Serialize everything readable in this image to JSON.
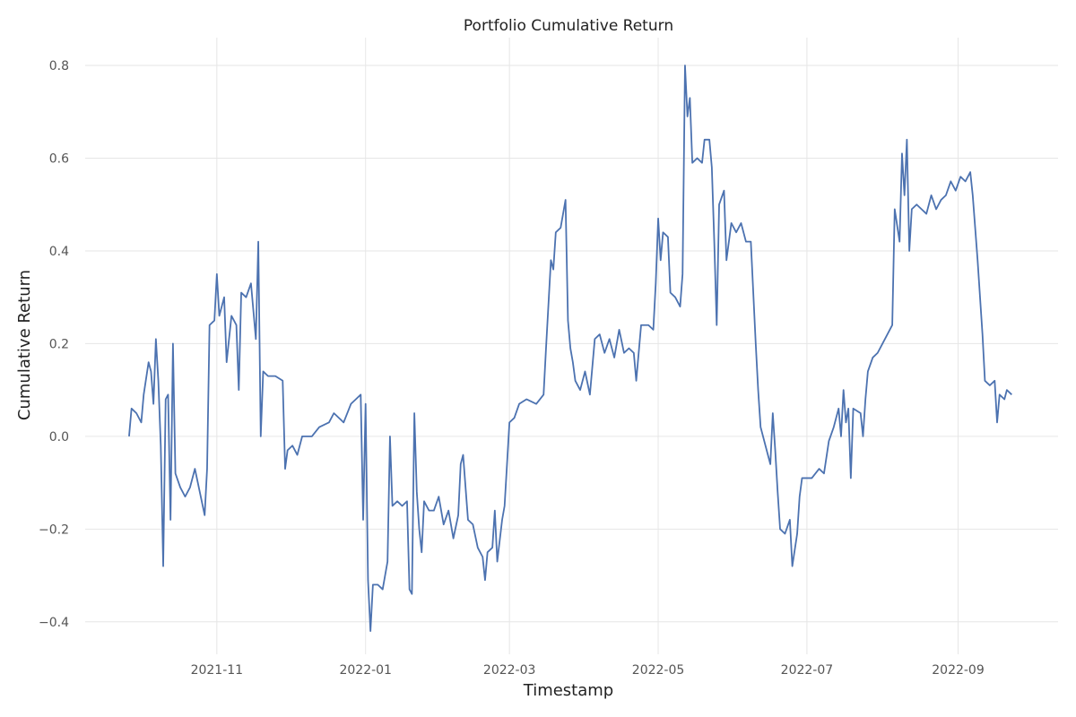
{
  "chart_data": {
    "type": "line",
    "title": "Portfolio Cumulative Return",
    "xlabel": "Timestamp",
    "ylabel": "Cumulative Return",
    "grid": true,
    "legend": "none",
    "xlim": [
      "2021-09-08",
      "2022-10-12"
    ],
    "ylim": [
      -0.47,
      0.86
    ],
    "x_ticks": [
      "2021-11-01",
      "2022-01-01",
      "2022-03-01",
      "2022-05-01",
      "2022-07-01",
      "2022-09-01"
    ],
    "x_tick_labels": [
      "2021-11",
      "2022-01",
      "2022-03",
      "2022-05",
      "2022-07",
      "2022-09"
    ],
    "y_ticks": [
      -0.4,
      -0.2,
      0.0,
      0.2,
      0.4,
      0.6,
      0.8
    ],
    "y_tick_labels": [
      "−0.4",
      "−0.2",
      "0.0",
      "0.2",
      "0.4",
      "0.6",
      "0.8"
    ],
    "series": [
      {
        "color": "#4c72b0",
        "points": [
          [
            "2021-09-26",
            0.0
          ],
          [
            "2021-09-27",
            0.06
          ],
          [
            "2021-09-29",
            0.05
          ],
          [
            "2021-10-01",
            0.03
          ],
          [
            "2021-10-02",
            0.09
          ],
          [
            "2021-10-04",
            0.16
          ],
          [
            "2021-10-05",
            0.14
          ],
          [
            "2021-10-06",
            0.07
          ],
          [
            "2021-10-07",
            0.21
          ],
          [
            "2021-10-08",
            0.12
          ],
          [
            "2021-10-09",
            -0.02
          ],
          [
            "2021-10-10",
            -0.28
          ],
          [
            "2021-10-11",
            0.08
          ],
          [
            "2021-10-12",
            0.09
          ],
          [
            "2021-10-13",
            -0.18
          ],
          [
            "2021-10-14",
            0.2
          ],
          [
            "2021-10-15",
            -0.08
          ],
          [
            "2021-10-17",
            -0.11
          ],
          [
            "2021-10-19",
            -0.13
          ],
          [
            "2021-10-21",
            -0.11
          ],
          [
            "2021-10-23",
            -0.07
          ],
          [
            "2021-10-25",
            -0.12
          ],
          [
            "2021-10-27",
            -0.17
          ],
          [
            "2021-10-28",
            -0.07
          ],
          [
            "2021-10-29",
            0.24
          ],
          [
            "2021-10-31",
            0.25
          ],
          [
            "2021-11-01",
            0.35
          ],
          [
            "2021-11-02",
            0.26
          ],
          [
            "2021-11-04",
            0.3
          ],
          [
            "2021-11-05",
            0.16
          ],
          [
            "2021-11-07",
            0.26
          ],
          [
            "2021-11-09",
            0.24
          ],
          [
            "2021-11-10",
            0.1
          ],
          [
            "2021-11-11",
            0.31
          ],
          [
            "2021-11-13",
            0.3
          ],
          [
            "2021-11-15",
            0.33
          ],
          [
            "2021-11-17",
            0.21
          ],
          [
            "2021-11-18",
            0.42
          ],
          [
            "2021-11-19",
            0.0
          ],
          [
            "2021-11-20",
            0.14
          ],
          [
            "2021-11-22",
            0.13
          ],
          [
            "2021-11-25",
            0.13
          ],
          [
            "2021-11-28",
            0.12
          ],
          [
            "2021-11-29",
            -0.07
          ],
          [
            "2021-11-30",
            -0.03
          ],
          [
            "2021-12-02",
            -0.02
          ],
          [
            "2021-12-04",
            -0.04
          ],
          [
            "2021-12-06",
            0.0
          ],
          [
            "2021-12-10",
            0.0
          ],
          [
            "2021-12-13",
            0.02
          ],
          [
            "2021-12-17",
            0.03
          ],
          [
            "2021-12-19",
            0.05
          ],
          [
            "2021-12-23",
            0.03
          ],
          [
            "2021-12-26",
            0.07
          ],
          [
            "2021-12-28",
            0.08
          ],
          [
            "2021-12-30",
            0.09
          ],
          [
            "2021-12-31",
            -0.18
          ],
          [
            "2022-01-01",
            0.07
          ],
          [
            "2022-01-02",
            -0.31
          ],
          [
            "2022-01-03",
            -0.42
          ],
          [
            "2022-01-04",
            -0.32
          ],
          [
            "2022-01-06",
            -0.32
          ],
          [
            "2022-01-08",
            -0.33
          ],
          [
            "2022-01-10",
            -0.27
          ],
          [
            "2022-01-11",
            0.0
          ],
          [
            "2022-01-12",
            -0.15
          ],
          [
            "2022-01-14",
            -0.14
          ],
          [
            "2022-01-16",
            -0.15
          ],
          [
            "2022-01-18",
            -0.14
          ],
          [
            "2022-01-19",
            -0.33
          ],
          [
            "2022-01-20",
            -0.34
          ],
          [
            "2022-01-21",
            0.05
          ],
          [
            "2022-01-22",
            -0.12
          ],
          [
            "2022-01-23",
            -0.2
          ],
          [
            "2022-01-24",
            -0.25
          ],
          [
            "2022-01-25",
            -0.14
          ],
          [
            "2022-01-27",
            -0.16
          ],
          [
            "2022-01-29",
            -0.16
          ],
          [
            "2022-01-31",
            -0.13
          ],
          [
            "2022-02-02",
            -0.19
          ],
          [
            "2022-02-04",
            -0.16
          ],
          [
            "2022-02-06",
            -0.22
          ],
          [
            "2022-02-08",
            -0.17
          ],
          [
            "2022-02-09",
            -0.06
          ],
          [
            "2022-02-10",
            -0.04
          ],
          [
            "2022-02-12",
            -0.18
          ],
          [
            "2022-02-14",
            -0.19
          ],
          [
            "2022-02-16",
            -0.24
          ],
          [
            "2022-02-18",
            -0.26
          ],
          [
            "2022-02-19",
            -0.31
          ],
          [
            "2022-02-20",
            -0.25
          ],
          [
            "2022-02-22",
            -0.24
          ],
          [
            "2022-02-23",
            -0.16
          ],
          [
            "2022-02-24",
            -0.27
          ],
          [
            "2022-02-26",
            -0.18
          ],
          [
            "2022-02-27",
            -0.15
          ],
          [
            "2022-03-01",
            0.03
          ],
          [
            "2022-03-03",
            0.04
          ],
          [
            "2022-03-05",
            0.07
          ],
          [
            "2022-03-08",
            0.08
          ],
          [
            "2022-03-12",
            0.07
          ],
          [
            "2022-03-15",
            0.09
          ],
          [
            "2022-03-16",
            0.19
          ],
          [
            "2022-03-18",
            0.38
          ],
          [
            "2022-03-19",
            0.36
          ],
          [
            "2022-03-20",
            0.44
          ],
          [
            "2022-03-22",
            0.45
          ],
          [
            "2022-03-24",
            0.51
          ],
          [
            "2022-03-25",
            0.25
          ],
          [
            "2022-03-26",
            0.19
          ],
          [
            "2022-03-27",
            0.16
          ],
          [
            "2022-03-28",
            0.12
          ],
          [
            "2022-03-30",
            0.1
          ],
          [
            "2022-04-01",
            0.14
          ],
          [
            "2022-04-03",
            0.09
          ],
          [
            "2022-04-05",
            0.21
          ],
          [
            "2022-04-07",
            0.22
          ],
          [
            "2022-04-09",
            0.18
          ],
          [
            "2022-04-11",
            0.21
          ],
          [
            "2022-04-13",
            0.17
          ],
          [
            "2022-04-15",
            0.23
          ],
          [
            "2022-04-17",
            0.18
          ],
          [
            "2022-04-19",
            0.19
          ],
          [
            "2022-04-21",
            0.18
          ],
          [
            "2022-04-22",
            0.12
          ],
          [
            "2022-04-24",
            0.24
          ],
          [
            "2022-04-27",
            0.24
          ],
          [
            "2022-04-29",
            0.23
          ],
          [
            "2022-04-30",
            0.33
          ],
          [
            "2022-05-01",
            0.47
          ],
          [
            "2022-05-02",
            0.38
          ],
          [
            "2022-05-03",
            0.44
          ],
          [
            "2022-05-05",
            0.43
          ],
          [
            "2022-05-06",
            0.31
          ],
          [
            "2022-05-08",
            0.3
          ],
          [
            "2022-05-10",
            0.28
          ],
          [
            "2022-05-11",
            0.35
          ],
          [
            "2022-05-12",
            0.8
          ],
          [
            "2022-05-13",
            0.69
          ],
          [
            "2022-05-14",
            0.73
          ],
          [
            "2022-05-15",
            0.59
          ],
          [
            "2022-05-17",
            0.6
          ],
          [
            "2022-05-19",
            0.59
          ],
          [
            "2022-05-20",
            0.64
          ],
          [
            "2022-05-22",
            0.64
          ],
          [
            "2022-05-23",
            0.58
          ],
          [
            "2022-05-24",
            0.42
          ],
          [
            "2022-05-25",
            0.24
          ],
          [
            "2022-05-26",
            0.5
          ],
          [
            "2022-05-28",
            0.53
          ],
          [
            "2022-05-29",
            0.38
          ],
          [
            "2022-05-31",
            0.46
          ],
          [
            "2022-06-02",
            0.44
          ],
          [
            "2022-06-04",
            0.46
          ],
          [
            "2022-06-06",
            0.42
          ],
          [
            "2022-06-08",
            0.42
          ],
          [
            "2022-06-09",
            0.31
          ],
          [
            "2022-06-10",
            0.2
          ],
          [
            "2022-06-11",
            0.1
          ],
          [
            "2022-06-12",
            0.02
          ],
          [
            "2022-06-14",
            -0.02
          ],
          [
            "2022-06-16",
            -0.06
          ],
          [
            "2022-06-17",
            0.05
          ],
          [
            "2022-06-18",
            -0.03
          ],
          [
            "2022-06-19",
            -0.12
          ],
          [
            "2022-06-20",
            -0.2
          ],
          [
            "2022-06-22",
            -0.21
          ],
          [
            "2022-06-24",
            -0.18
          ],
          [
            "2022-06-25",
            -0.28
          ],
          [
            "2022-06-27",
            -0.21
          ],
          [
            "2022-06-28",
            -0.13
          ],
          [
            "2022-06-29",
            -0.09
          ],
          [
            "2022-07-03",
            -0.09
          ],
          [
            "2022-07-06",
            -0.07
          ],
          [
            "2022-07-08",
            -0.08
          ],
          [
            "2022-07-10",
            -0.01
          ],
          [
            "2022-07-12",
            0.02
          ],
          [
            "2022-07-14",
            0.06
          ],
          [
            "2022-07-15",
            0.0
          ],
          [
            "2022-07-16",
            0.1
          ],
          [
            "2022-07-17",
            0.03
          ],
          [
            "2022-07-18",
            0.06
          ],
          [
            "2022-07-19",
            -0.09
          ],
          [
            "2022-07-20",
            0.06
          ],
          [
            "2022-07-23",
            0.05
          ],
          [
            "2022-07-24",
            0.0
          ],
          [
            "2022-07-25",
            0.08
          ],
          [
            "2022-07-26",
            0.14
          ],
          [
            "2022-07-28",
            0.17
          ],
          [
            "2022-07-30",
            0.18
          ],
          [
            "2022-08-01",
            0.2
          ],
          [
            "2022-08-03",
            0.22
          ],
          [
            "2022-08-05",
            0.24
          ],
          [
            "2022-08-06",
            0.49
          ],
          [
            "2022-08-08",
            0.42
          ],
          [
            "2022-08-09",
            0.61
          ],
          [
            "2022-08-10",
            0.52
          ],
          [
            "2022-08-11",
            0.64
          ],
          [
            "2022-08-12",
            0.4
          ],
          [
            "2022-08-13",
            0.49
          ],
          [
            "2022-08-15",
            0.5
          ],
          [
            "2022-08-17",
            0.49
          ],
          [
            "2022-08-19",
            0.48
          ],
          [
            "2022-08-21",
            0.52
          ],
          [
            "2022-08-23",
            0.49
          ],
          [
            "2022-08-25",
            0.51
          ],
          [
            "2022-08-27",
            0.52
          ],
          [
            "2022-08-29",
            0.55
          ],
          [
            "2022-08-31",
            0.53
          ],
          [
            "2022-09-02",
            0.56
          ],
          [
            "2022-09-04",
            0.55
          ],
          [
            "2022-09-06",
            0.57
          ],
          [
            "2022-09-07",
            0.52
          ],
          [
            "2022-09-08",
            0.45
          ],
          [
            "2022-09-09",
            0.38
          ],
          [
            "2022-09-10",
            0.3
          ],
          [
            "2022-09-11",
            0.22
          ],
          [
            "2022-09-12",
            0.12
          ],
          [
            "2022-09-14",
            0.11
          ],
          [
            "2022-09-16",
            0.12
          ],
          [
            "2022-09-17",
            0.03
          ],
          [
            "2022-09-18",
            0.09
          ],
          [
            "2022-09-20",
            0.08
          ],
          [
            "2022-09-21",
            0.1
          ],
          [
            "2022-09-23",
            0.09
          ]
        ]
      }
    ]
  }
}
